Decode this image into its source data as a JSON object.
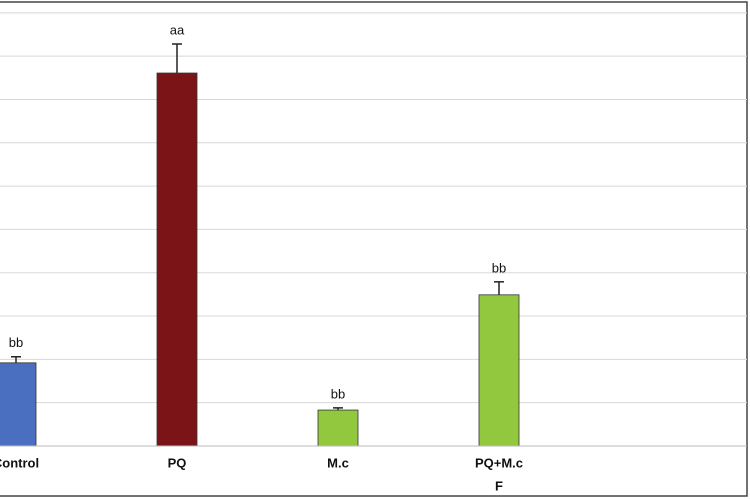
{
  "chart_data": {
    "type": "bar",
    "categories": [
      "Control",
      "PQ",
      "M.c",
      "PQ+M.c"
    ],
    "values": [
      1.92,
      8.61,
      0.83,
      3.49
    ],
    "errors": [
      0.14,
      0.67,
      0.05,
      0.3
    ],
    "annotations": [
      "bb",
      "aa",
      "bb",
      "bb"
    ],
    "colors": [
      "#4a6fc0",
      "#7b1416",
      "#92c83e",
      "#92c83e"
    ],
    "xlabel": "F",
    "ylim": [
      0,
      10.25
    ],
    "yticks": [
      0,
      1,
      2,
      3,
      4,
      5,
      6,
      7,
      8,
      9,
      10
    ],
    "grid": true
  }
}
